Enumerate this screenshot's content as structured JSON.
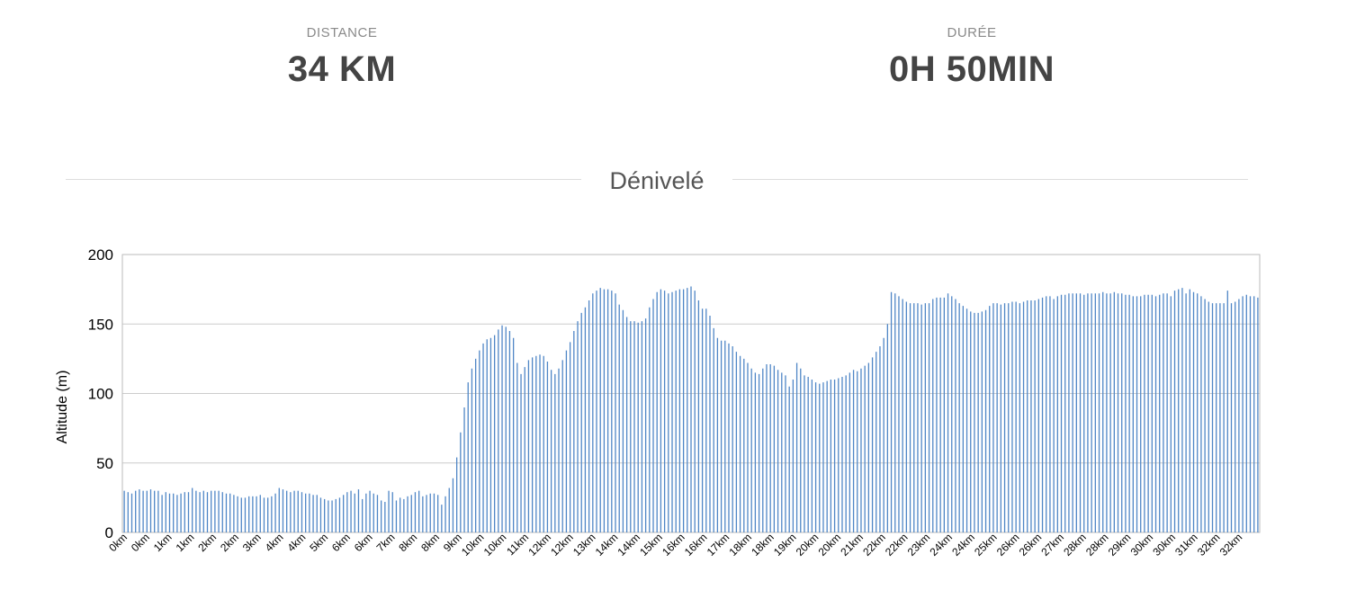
{
  "stats": {
    "distance": {
      "label": "DISTANCE",
      "value": "34 KM"
    },
    "duration": {
      "label": "DURÉE",
      "value": "0H 50MIN"
    }
  },
  "section": {
    "title": "Dénivelé"
  },
  "colors": {
    "bar": "#4f86c6",
    "grid": "#cccccc",
    "frame": "#bbbbbb"
  },
  "chart_data": {
    "type": "bar",
    "ylabel": "Altitude (m)",
    "xlabel": "",
    "ylim": [
      0,
      200
    ],
    "yticks": [
      0,
      50,
      100,
      150,
      200
    ],
    "grid": true,
    "x_tick_labels": [
      "0km",
      "0km",
      "1km",
      "1km",
      "2km",
      "2km",
      "3km",
      "4km",
      "4km",
      "5km",
      "6km",
      "6km",
      "7km",
      "8km",
      "8km",
      "9km",
      "10km",
      "10km",
      "11km",
      "12km",
      "12km",
      "13km",
      "14km",
      "14km",
      "15km",
      "16km",
      "16km",
      "17km",
      "18km",
      "18km",
      "19km",
      "20km",
      "20km",
      "21km",
      "22km",
      "22km",
      "23km",
      "24km",
      "24km",
      "25km",
      "26km",
      "26km",
      "27km",
      "28km",
      "28km",
      "29km",
      "30km",
      "30km",
      "31km",
      "32km",
      "32km"
    ],
    "values": [
      30,
      29,
      28,
      30,
      31,
      30,
      30,
      31,
      30,
      30,
      27,
      29,
      28,
      28,
      27,
      28,
      29,
      29,
      32,
      30,
      29,
      30,
      29,
      30,
      30,
      30,
      29,
      28,
      28,
      27,
      26,
      25,
      25,
      26,
      26,
      26,
      27,
      25,
      25,
      26,
      28,
      32,
      31,
      30,
      29,
      30,
      30,
      29,
      28,
      28,
      27,
      27,
      25,
      24,
      23,
      23,
      24,
      25,
      27,
      29,
      30,
      28,
      31,
      24,
      28,
      30,
      28,
      27,
      23,
      22,
      30,
      29,
      23,
      25,
      24,
      26,
      27,
      29,
      30,
      26,
      27,
      28,
      28,
      27,
      20,
      26,
      32,
      39,
      54,
      72,
      90,
      108,
      118,
      125,
      131,
      136,
      139,
      140,
      142,
      146,
      149,
      148,
      145,
      140,
      122,
      114,
      119,
      124,
      126,
      127,
      128,
      127,
      123,
      117,
      114,
      118,
      124,
      131,
      137,
      145,
      152,
      158,
      162,
      167,
      172,
      174,
      176,
      175,
      175,
      174,
      172,
      164,
      160,
      155,
      152,
      152,
      151,
      152,
      154,
      162,
      168,
      173,
      175,
      174,
      172,
      173,
      174,
      175,
      175,
      176,
      177,
      174,
      167,
      161,
      161,
      156,
      147,
      140,
      138,
      138,
      136,
      134,
      130,
      127,
      125,
      122,
      118,
      115,
      114,
      118,
      121,
      121,
      120,
      117,
      115,
      113,
      105,
      110,
      122,
      118,
      113,
      112,
      110,
      108,
      107,
      108,
      109,
      110,
      110,
      111,
      112,
      113,
      115,
      117,
      116,
      118,
      120,
      122,
      126,
      130,
      134,
      140,
      150,
      173,
      172,
      170,
      168,
      166,
      165,
      165,
      165,
      164,
      165,
      165,
      168,
      169,
      169,
      169,
      172,
      170,
      168,
      165,
      163,
      161,
      159,
      158,
      158,
      159,
      160,
      163,
      165,
      165,
      164,
      165,
      165,
      166,
      166,
      165,
      166,
      167,
      167,
      167,
      168,
      169,
      170,
      170,
      168,
      170,
      171,
      171,
      172,
      172,
      172,
      172,
      171,
      172,
      172,
      172,
      172,
      173,
      172,
      172,
      173,
      172,
      172,
      171,
      171,
      170,
      170,
      170,
      171,
      171,
      171,
      170,
      171,
      172,
      172,
      170,
      174,
      175,
      176,
      172,
      175,
      173,
      172,
      170,
      168,
      166,
      165,
      165,
      165,
      165,
      174,
      165,
      166,
      168,
      170,
      171,
      170,
      170,
      169
    ]
  }
}
